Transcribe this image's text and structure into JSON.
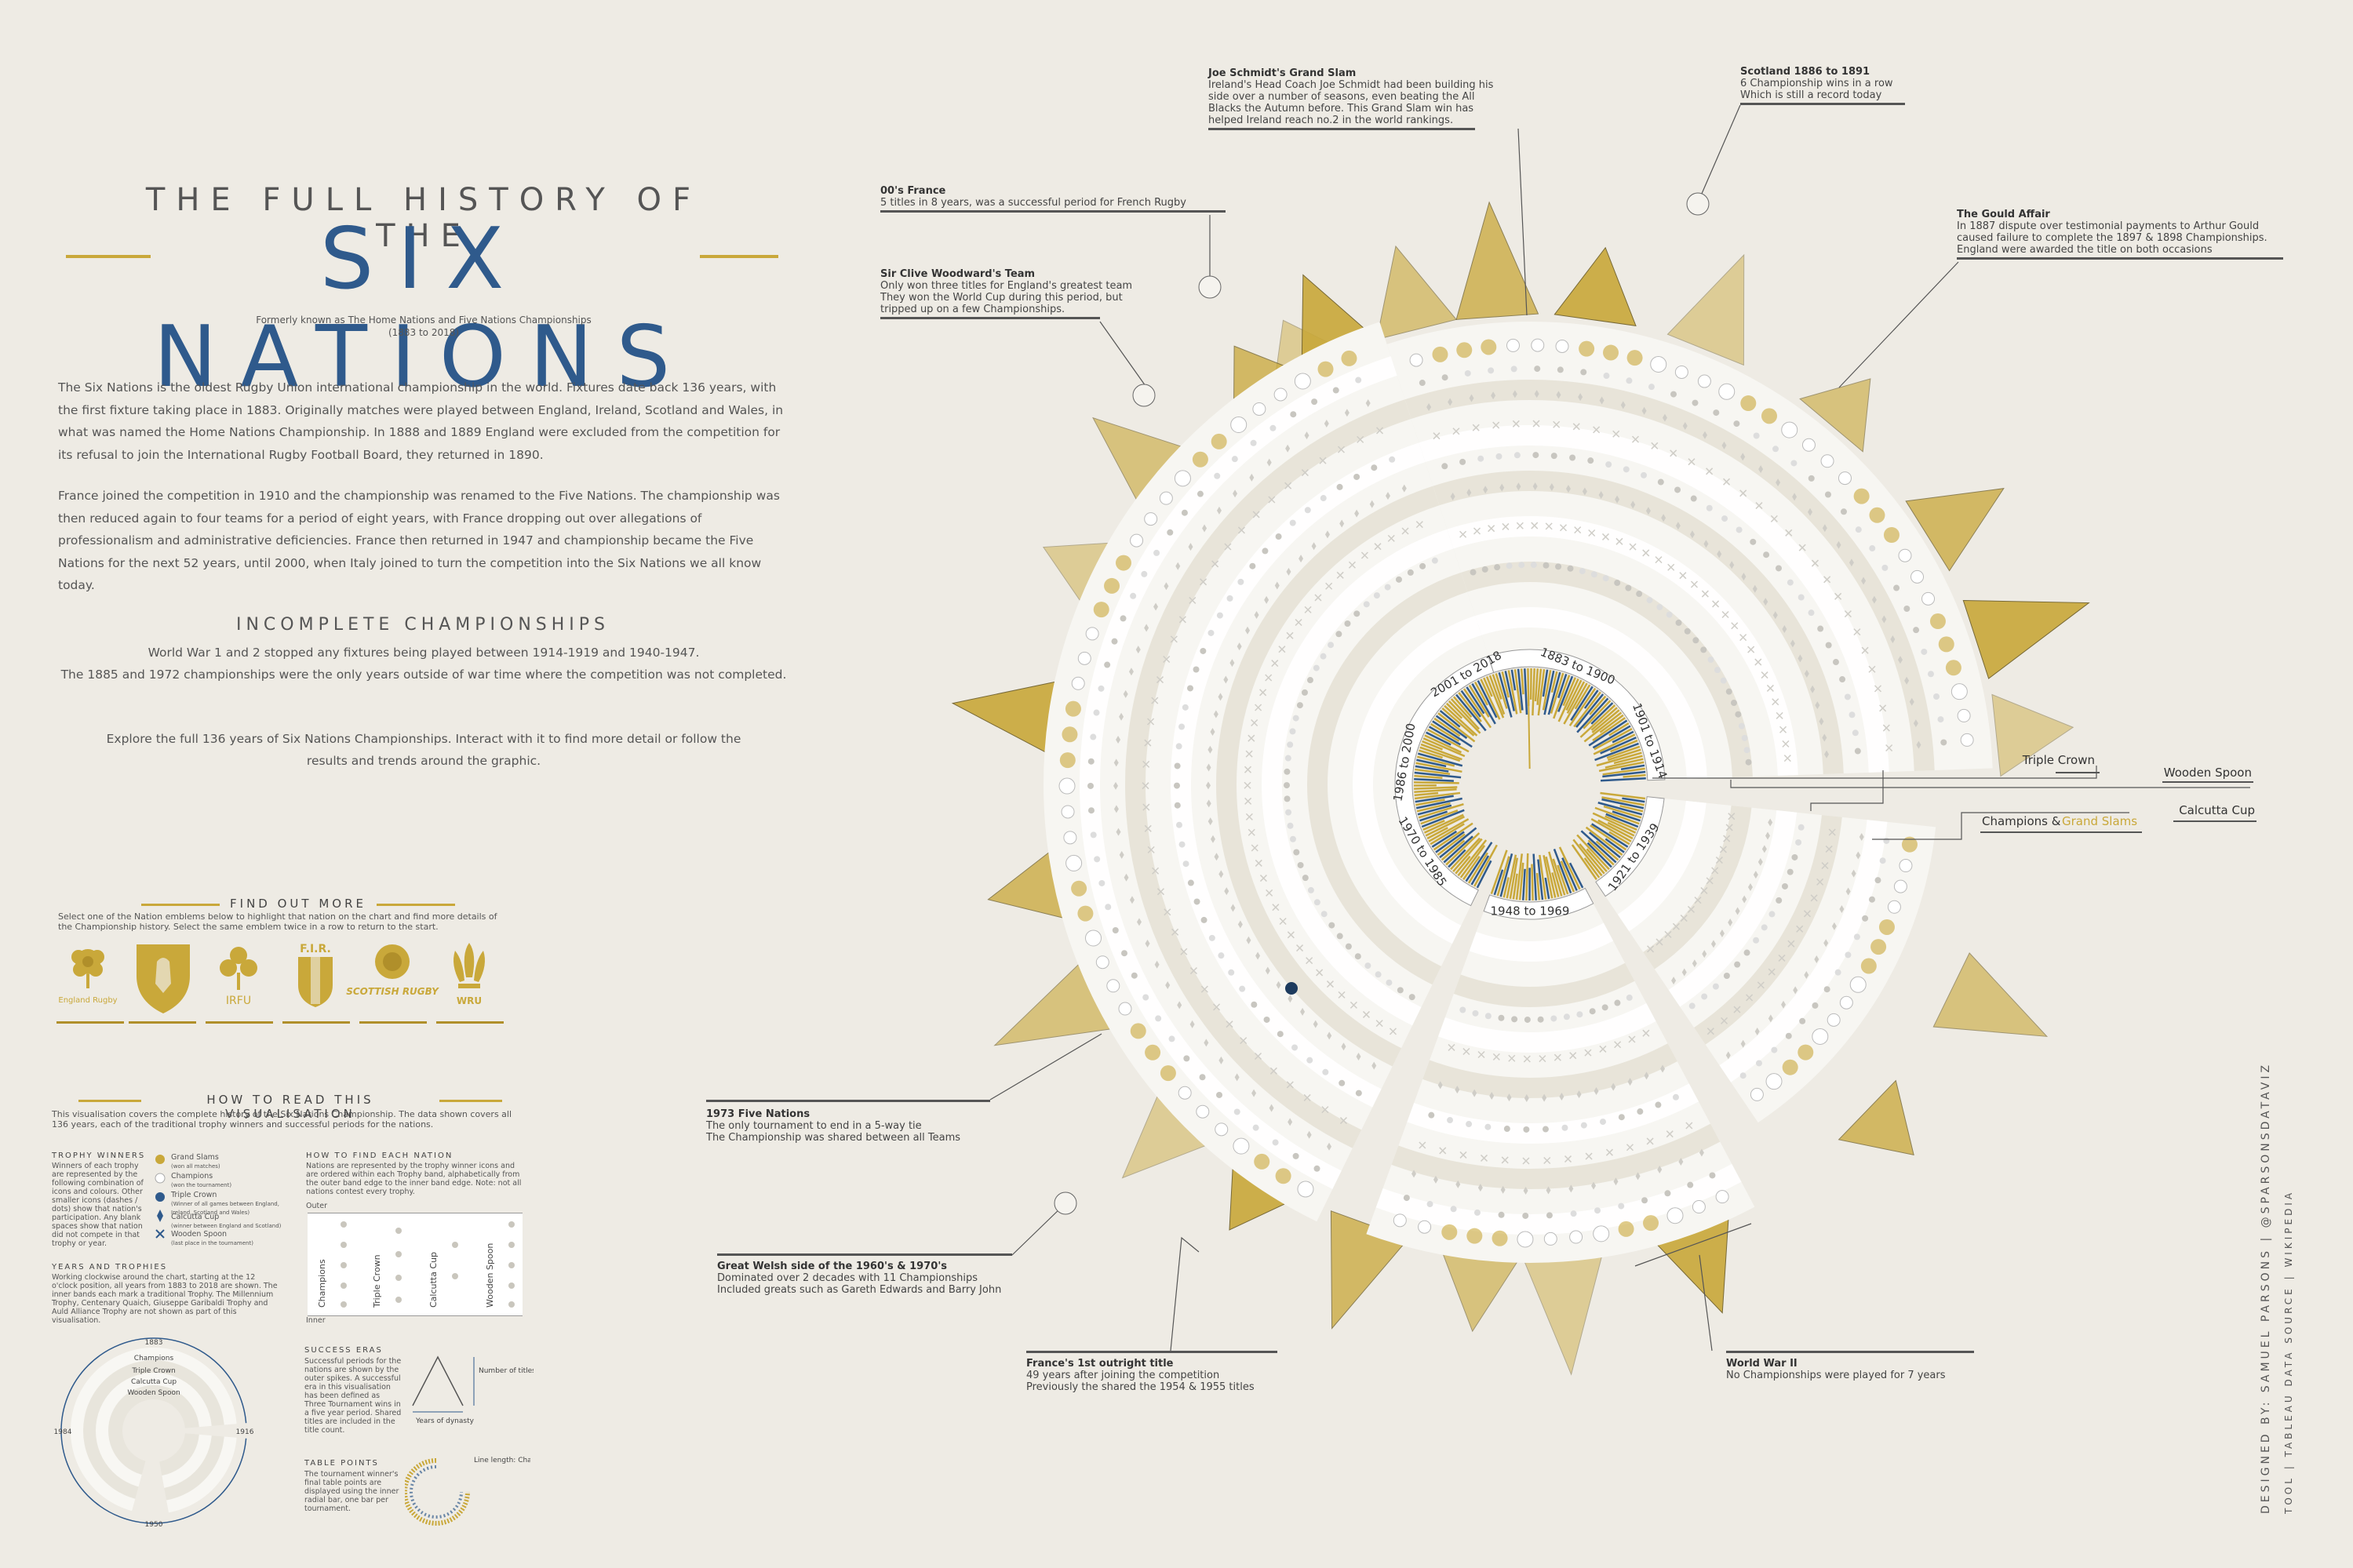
{
  "header": {
    "title_top": "THE FULL HISTORY OF THE",
    "title_main": "SIX NATIONS",
    "subtitle_1": "Formerly known as The Home Nations and Five Nations Championships",
    "subtitle_2": "(1883 to 2018)"
  },
  "intro": {
    "para1": "The Six Nations is the oldest Rugby Union international championship in the world. Fixtures date back 136 years, with the first fixture taking place in 1883. Originally matches were played between England, Ireland, Scotland and Wales, in what was named the Home Nations Championship. In 1888 and 1889 England were excluded from the competition for its refusal to join the International Rugby Football Board, they returned in 1890.",
    "para2": "France joined the competition in 1910 and the championship was renamed to the Five Nations. The championship was then reduced again to four teams for a period of eight years, with France dropping out over allegations of professionalism and administrative deficiencies. France then returned in 1947 and championship became the Five Nations for the next 52 years, until 2000, when Italy joined to turn the competition into the Six Nations we all know today."
  },
  "incomplete": {
    "title": "INCOMPLETE CHAMPIONSHIPS",
    "line1": "World War 1 and 2 stopped any fixtures being played between 1914-1919 and 1940-1947.",
    "line2": "The 1885 and 1972 championships were the only years outside of war time where the competition was not completed."
  },
  "explore": {
    "line1": "Explore the full 136 years of Six Nations Championships. Interact with it to find more detail or follow the",
    "line2": "results and trends around the graphic."
  },
  "find_out": {
    "title": "FIND OUT MORE",
    "text": "Select one of the Nation emblems below to highlight that nation on the chart and find more details of the Championship history. Select the same emblem twice in a row to return to the start.",
    "emblems": [
      {
        "name": "england",
        "label": "England Rugby"
      },
      {
        "name": "france",
        "label": ""
      },
      {
        "name": "ireland",
        "label": "IRFU"
      },
      {
        "name": "italy",
        "label": "F.I.R."
      },
      {
        "name": "scotland",
        "label": "SCOTTISH RUGBY"
      },
      {
        "name": "wales",
        "label": "WRU"
      }
    ]
  },
  "how_to_read": {
    "title": "HOW TO READ THIS VISUALISATION",
    "intro": "This visualisation covers the complete history of the Six Nations Championship. The data shown covers all 136 years, each of the traditional trophy winners and successful periods for the nations.",
    "trophy_title": "TROPHY WINNERS",
    "trophy_text": "Winners of each trophy are represented by the following combination of icons and colours. Other smaller icons (dashes / dots) show that nation's participation. Any blank spaces show that nation did not compete in that trophy or year.",
    "legend": [
      {
        "label": "Grand Slams",
        "sub": "(won all matches)"
      },
      {
        "label": "Champions",
        "sub": "(won the tournament)"
      },
      {
        "label": "Triple Crown",
        "sub": "(Winner of all games between England, Ireland, Scotland and Wales)"
      },
      {
        "label": "Calcutta Cup",
        "sub": "(winner between England and Scotland)"
      },
      {
        "label": "Wooden Spoon",
        "sub": "(last place in the tournament)"
      }
    ],
    "find_nation_title": "HOW TO FIND EACH NATION",
    "find_nation_text": "Nations are represented by the trophy winner icons and are ordered within each Trophy band, alphabetically from the outer band edge to the inner band edge. Note: not all nations contest every trophy.",
    "outer": "Outer",
    "inner": "Inner",
    "band_labels": [
      "Champions",
      "Triple Crown",
      "Calcutta Cup",
      "Wooden Spoon"
    ],
    "years_title": "YEARS AND TROPHIES",
    "years_text": "Working clockwise around the chart, starting at the 12 o'clock position, all years from 1883 to 2018 are shown. The inner bands each mark a traditional Trophy. The Millennium Trophy, Centenary Quaich, Giuseppe Garibaldi Trophy and Auld Alliance Trophy are not shown as part of this visualisation.",
    "mini_labels": {
      "top": "1883",
      "right": "1916",
      "bottom": "1950",
      "left": "1984",
      "b1": "Champions",
      "b2": "Triple Crown",
      "b3": "Calcutta Cup",
      "b4": "Wooden Spoon"
    },
    "success_title": "SUCCESS ERAS",
    "success_text": "Successful periods for the nations are shown by the outer spikes. A successful era in this visualisation has been defined as Three Tournament wins in a five year period. Shared titles are included in the title count.",
    "number_of_titles": "Number of titles",
    "years_of_dynasty": "Years of dynasty",
    "table_title": "TABLE POINTS",
    "table_text": "The tournament winner's final table points are displayed using the inner radial bar, one bar per tournament.",
    "line_length": "Line length: Champions Table Points"
  },
  "chart": {
    "era_labels": [
      "1883 to 1900",
      "1901 to 1914",
      "1921 to 1939",
      "1948 to 1969",
      "1970 to 1985",
      "1986 to 2000",
      "2001 to 2018"
    ],
    "band_labels": {
      "triple_crown": "Triple Crown",
      "wooden_spoon": "Wooden Spoon",
      "calcutta_cup": "Calcutta Cup",
      "champions": "Champions &",
      "grand_slams": "Grand Slams"
    },
    "colors": {
      "gold": "#c9a83a",
      "blue": "#2f5a8c",
      "band": "#f7f6f2",
      "band_alt": "#e6e2d6"
    }
  },
  "annotations": [
    {
      "name": "schmidt",
      "title": "Joe Schmidt's Grand Slam",
      "lines": [
        "Ireland's Head Coach Joe Schmidt had been building his",
        "side over a number of seasons, even beating the All",
        "Blacks the Autumn before. This Grand Slam win has",
        "helped Ireland reach no.2 in the world rankings."
      ]
    },
    {
      "name": "scotland",
      "title": "Scotland 1886 to 1891",
      "lines": [
        "6 Championship wins in a row",
        "Which is still a record today"
      ]
    },
    {
      "name": "france00",
      "title": "00's France",
      "lines": [
        "5 titles in 8 years, was a successful period for French Rugby"
      ]
    },
    {
      "name": "woodward",
      "title": "Sir Clive Woodward's Team",
      "lines": [
        "Only won three titles for England's greatest team",
        "They won the World Cup during this period, but",
        "tripped up on a few Championships."
      ]
    },
    {
      "name": "gould",
      "title": "The Gould Affair",
      "lines": [
        "In 1887 dispute over testimonial payments to Arthur Gould",
        "caused failure to complete the 1897 & 1898 Championships.",
        "England were awarded the title on both occasions"
      ]
    },
    {
      "name": "five_nations_1973",
      "title": "1973 Five Nations",
      "lines": [
        "The only tournament to end in a 5-way tie",
        "The Championship was shared between all Teams"
      ]
    },
    {
      "name": "welsh",
      "title": "Great Welsh side of the 1960's & 1970's",
      "lines": [
        "Dominated over 2 decades with 11 Championships",
        "Included greats such as Gareth Edwards and Barry John"
      ]
    },
    {
      "name": "france_first",
      "title": "France's 1st outright title",
      "lines": [
        "49 years after joining the competition",
        "Previously the shared the 1954 & 1955 titles"
      ]
    },
    {
      "name": "ww2",
      "title": "World War II",
      "lines": [
        "No Championships were played for 7 years"
      ]
    }
  ],
  "credits": {
    "line1": "DESIGNED BY: SAMUEL PARSONS | @SPARSONSDATAVIZ",
    "line2": "TOOL | TABLEAU    DATA SOURCE | WIKIPEDIA"
  }
}
